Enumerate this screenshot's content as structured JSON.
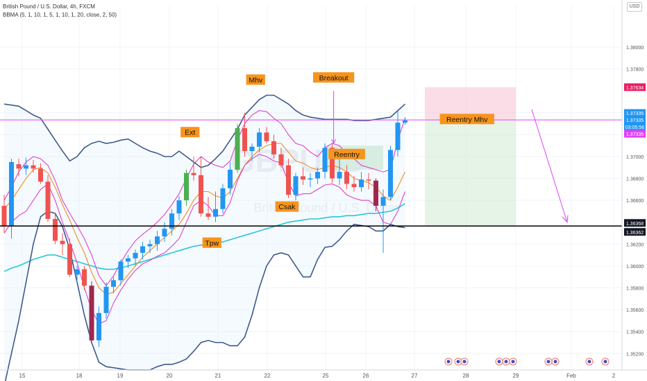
{
  "header": {
    "symbol_line": "British Pound / U.S. Dollar, 4h, FXCM",
    "indicator_line": "BBMA (5, 1, 10, 1, 5, 1, 10, 1, 20, close, 2, 50)",
    "currency_button": "USD"
  },
  "watermark": {
    "ticker": "GBPUSD",
    "name": "British Pound / U.S. Dollar"
  },
  "colors": {
    "up": "#2196f3",
    "down": "#ef5350",
    "extreme_up": "#4caf50",
    "extreme_down": "#a0284e",
    "bb_outer": "#3c5a8c",
    "bb_inner": "#e040c8",
    "wma": "#f08c1e",
    "ema50": "#26c6da",
    "label_bg": "#f7941d",
    "support_line": "#000000",
    "reentry_line": "#e040fb",
    "stop_zone": "#f8bbd0",
    "target_zone": "#c8e6c9"
  },
  "chart_data": {
    "type": "candlestick",
    "title": "British Pound / U.S. Dollar, 4h, FXCM",
    "y_axis": {
      "ticks": [
        "1.38000",
        "1.37800",
        "1.37400",
        "1.37200",
        "1.37000",
        "1.36800",
        "1.36600",
        "1.36200",
        "1.36000",
        "1.35800",
        "1.35600",
        "1.35400",
        "1.35200"
      ],
      "range": [
        1.3505,
        1.3838
      ]
    },
    "x_axis": {
      "ticks": [
        "15",
        "18",
        "19",
        "20",
        "21",
        "22",
        "25",
        "26",
        "27",
        "28",
        "29",
        "Feb",
        "2"
      ]
    },
    "price_labels": [
      {
        "value": "1.37634",
        "color": "#e91e63"
      },
      {
        "value": "1.37335",
        "color": "#2196f3"
      },
      {
        "value": "1.37335",
        "color": "#2196f3"
      },
      {
        "value": "03:05:56",
        "color": "#2196f3"
      },
      {
        "value": "1.37335",
        "color": "#e040fb"
      },
      {
        "value": "1.36368",
        "color": "#131722"
      },
      {
        "value": "1.36362",
        "color": "#131722"
      }
    ],
    "candles": [
      {
        "o": 1.3655,
        "h": 1.3665,
        "l": 1.363,
        "c": 1.3637
      },
      {
        "o": 1.3637,
        "h": 1.3698,
        "l": 1.3625,
        "c": 1.3695
      },
      {
        "o": 1.3693,
        "h": 1.3698,
        "l": 1.3682,
        "c": 1.3689
      },
      {
        "o": 1.3689,
        "h": 1.3699,
        "l": 1.3683,
        "c": 1.3692
      },
      {
        "o": 1.3692,
        "h": 1.3697,
        "l": 1.3685,
        "c": 1.3689
      },
      {
        "o": 1.3689,
        "h": 1.3694,
        "l": 1.3675,
        "c": 1.3677
      },
      {
        "o": 1.3677,
        "h": 1.3683,
        "l": 1.364,
        "c": 1.3643
      },
      {
        "o": 1.3643,
        "h": 1.3648,
        "l": 1.362,
        "c": 1.3623
      },
      {
        "o": 1.3623,
        "h": 1.363,
        "l": 1.361,
        "c": 1.362
      },
      {
        "o": 1.362,
        "h": 1.3625,
        "l": 1.359,
        "c": 1.3592
      },
      {
        "o": 1.3592,
        "h": 1.36,
        "l": 1.3585,
        "c": 1.3597
      },
      {
        "o": 1.3597,
        "h": 1.36,
        "l": 1.3578,
        "c": 1.3582
      },
      {
        "o": 1.3582,
        "h": 1.3586,
        "l": 1.353,
        "c": 1.3532
      },
      {
        "o": 1.3532,
        "h": 1.3563,
        "l": 1.3526,
        "c": 1.3557
      },
      {
        "o": 1.3557,
        "h": 1.3585,
        "l": 1.3552,
        "c": 1.3581
      },
      {
        "o": 1.3581,
        "h": 1.359,
        "l": 1.3575,
        "c": 1.3587
      },
      {
        "o": 1.3587,
        "h": 1.3606,
        "l": 1.3582,
        "c": 1.3604
      },
      {
        "o": 1.3604,
        "h": 1.361,
        "l": 1.3598,
        "c": 1.3607
      },
      {
        "o": 1.3607,
        "h": 1.3615,
        "l": 1.36,
        "c": 1.3612
      },
      {
        "o": 1.3612,
        "h": 1.3622,
        "l": 1.3606,
        "c": 1.3618
      },
      {
        "o": 1.3618,
        "h": 1.3624,
        "l": 1.3612,
        "c": 1.362
      },
      {
        "o": 1.362,
        "h": 1.3632,
        "l": 1.3614,
        "c": 1.3627
      },
      {
        "o": 1.3627,
        "h": 1.364,
        "l": 1.3622,
        "c": 1.3634
      },
      {
        "o": 1.3634,
        "h": 1.3652,
        "l": 1.3628,
        "c": 1.3648
      },
      {
        "o": 1.3648,
        "h": 1.3664,
        "l": 1.3642,
        "c": 1.366
      },
      {
        "o": 1.366,
        "h": 1.3688,
        "l": 1.3655,
        "c": 1.3685
      },
      {
        "o": 1.3685,
        "h": 1.37,
        "l": 1.3678,
        "c": 1.3683
      },
      {
        "o": 1.3683,
        "h": 1.37,
        "l": 1.3645,
        "c": 1.3648
      },
      {
        "o": 1.3648,
        "h": 1.3663,
        "l": 1.3642,
        "c": 1.3645
      },
      {
        "o": 1.3645,
        "h": 1.3668,
        "l": 1.364,
        "c": 1.3652
      },
      {
        "o": 1.3652,
        "h": 1.3675,
        "l": 1.3648,
        "c": 1.3671
      },
      {
        "o": 1.3671,
        "h": 1.3695,
        "l": 1.3665,
        "c": 1.3688
      },
      {
        "o": 1.3688,
        "h": 1.373,
        "l": 1.3685,
        "c": 1.3726
      },
      {
        "o": 1.3726,
        "h": 1.374,
        "l": 1.37,
        "c": 1.3705
      },
      {
        "o": 1.3705,
        "h": 1.3712,
        "l": 1.3696,
        "c": 1.3709
      },
      {
        "o": 1.3709,
        "h": 1.3726,
        "l": 1.3704,
        "c": 1.3722
      },
      {
        "o": 1.3722,
        "h": 1.3727,
        "l": 1.3712,
        "c": 1.3714
      },
      {
        "o": 1.3714,
        "h": 1.372,
        "l": 1.3698,
        "c": 1.3702
      },
      {
        "o": 1.3702,
        "h": 1.3708,
        "l": 1.369,
        "c": 1.3692
      },
      {
        "o": 1.3692,
        "h": 1.3698,
        "l": 1.3662,
        "c": 1.3665
      },
      {
        "o": 1.3665,
        "h": 1.3685,
        "l": 1.366,
        "c": 1.3682
      },
      {
        "o": 1.3682,
        "h": 1.369,
        "l": 1.3674,
        "c": 1.3679
      },
      {
        "o": 1.3679,
        "h": 1.3685,
        "l": 1.3672,
        "c": 1.368
      },
      {
        "o": 1.368,
        "h": 1.369,
        "l": 1.3675,
        "c": 1.3686
      },
      {
        "o": 1.3686,
        "h": 1.3712,
        "l": 1.368,
        "c": 1.3708
      },
      {
        "o": 1.3708,
        "h": 1.3712,
        "l": 1.3676,
        "c": 1.368
      },
      {
        "o": 1.368,
        "h": 1.3698,
        "l": 1.3674,
        "c": 1.3686
      },
      {
        "o": 1.3686,
        "h": 1.3692,
        "l": 1.367,
        "c": 1.3675
      },
      {
        "o": 1.3675,
        "h": 1.3682,
        "l": 1.3668,
        "c": 1.3672
      },
      {
        "o": 1.3672,
        "h": 1.3686,
        "l": 1.3668,
        "c": 1.3679
      },
      {
        "o": 1.3679,
        "h": 1.3685,
        "l": 1.367,
        "c": 1.3678
      },
      {
        "o": 1.3678,
        "h": 1.368,
        "l": 1.365,
        "c": 1.3655
      },
      {
        "o": 1.3655,
        "h": 1.367,
        "l": 1.3612,
        "c": 1.3663
      },
      {
        "o": 1.3663,
        "h": 1.371,
        "l": 1.366,
        "c": 1.3706
      },
      {
        "o": 1.3706,
        "h": 1.3742,
        "l": 1.37,
        "c": 1.3731
      },
      {
        "o": 1.3731,
        "h": 1.3736,
        "l": 1.3729,
        "c": 1.3733
      }
    ],
    "extreme_up_index": [
      25,
      32
    ],
    "extreme_down_index": [
      12,
      51
    ],
    "bands": {
      "bb_upper": [
        1.3748,
        1.3747,
        1.3746,
        1.3742,
        1.3738,
        1.3735,
        1.3725,
        1.3715,
        1.3705,
        1.3696,
        1.37,
        1.3708,
        1.3712,
        1.3714,
        1.3712,
        1.3713,
        1.3715,
        1.3716,
        1.3712,
        1.3708,
        1.3705,
        1.3703,
        1.37,
        1.37,
        1.3705,
        1.37,
        1.3695,
        1.369,
        1.3692,
        1.3698,
        1.3705,
        1.3715,
        1.3725,
        1.3738,
        1.3745,
        1.3752,
        1.3756,
        1.3756,
        1.3752,
        1.3748,
        1.3742,
        1.3738,
        1.3736,
        1.3735,
        1.3734,
        1.3734,
        1.3734,
        1.3734,
        1.3733,
        1.3733,
        1.3733,
        1.3734,
        1.3735,
        1.3736,
        1.3742,
        1.3748
      ],
      "bb_lower": [
        1.349,
        1.352,
        1.355,
        1.3585,
        1.362,
        1.3645,
        1.365,
        1.3648,
        1.3636,
        1.3615,
        1.3585,
        1.3555,
        1.353,
        1.3512,
        1.3508,
        1.3507,
        1.3506,
        1.3505,
        1.3505,
        1.3505,
        1.3505,
        1.3508,
        1.351,
        1.351,
        1.3512,
        1.3515,
        1.3522,
        1.353,
        1.3532,
        1.353,
        1.353,
        1.3527,
        1.3527,
        1.3535,
        1.3555,
        1.358,
        1.36,
        1.361,
        1.3612,
        1.361,
        1.36,
        1.359,
        1.359,
        1.3606,
        1.3617,
        1.3618,
        1.3624,
        1.3632,
        1.3638,
        1.3637,
        1.3636,
        1.3632,
        1.3632,
        1.3638,
        1.3636,
        1.3635
      ],
      "inner_upper": [
        1.366,
        1.3672,
        1.3686,
        1.3695,
        1.37,
        1.3698,
        1.3692,
        1.3678,
        1.366,
        1.3648,
        1.3637,
        1.3625,
        1.361,
        1.3591,
        1.3582,
        1.3591,
        1.3603,
        1.3614,
        1.3623,
        1.3629,
        1.3634,
        1.364,
        1.3647,
        1.3656,
        1.3666,
        1.368,
        1.3693,
        1.37,
        1.3695,
        1.3692,
        1.369,
        1.3696,
        1.3715,
        1.373,
        1.3738,
        1.3742,
        1.3741,
        1.3735,
        1.373,
        1.372,
        1.3712,
        1.371,
        1.3704,
        1.37,
        1.3708,
        1.3712,
        1.371,
        1.3702,
        1.3698,
        1.3692,
        1.369,
        1.3688,
        1.3686,
        1.3688,
        1.3715,
        1.3735
      ],
      "inner_lower": [
        1.363,
        1.364,
        1.3646,
        1.365,
        1.366,
        1.367,
        1.3675,
        1.366,
        1.364,
        1.3622,
        1.3603,
        1.358,
        1.356,
        1.3547,
        1.355,
        1.3566,
        1.3578,
        1.3588,
        1.3596,
        1.3602,
        1.3605,
        1.3609,
        1.3612,
        1.3618,
        1.3625,
        1.364,
        1.3655,
        1.366,
        1.3655,
        1.3646,
        1.3646,
        1.3658,
        1.3678,
        1.3692,
        1.3698,
        1.3702,
        1.37,
        1.3696,
        1.3694,
        1.3676,
        1.3664,
        1.3666,
        1.3666,
        1.367,
        1.3674,
        1.3675,
        1.3672,
        1.3665,
        1.3662,
        1.366,
        1.366,
        1.3655,
        1.364,
        1.3638,
        1.365,
        1.3668
      ],
      "wma": [
        1.3652,
        1.366,
        1.367,
        1.368,
        1.3688,
        1.369,
        1.3685,
        1.3672,
        1.3656,
        1.3642,
        1.3626,
        1.3612,
        1.3594,
        1.358,
        1.3574,
        1.3576,
        1.3584,
        1.3592,
        1.36,
        1.3608,
        1.3614,
        1.362,
        1.3626,
        1.3632,
        1.3638,
        1.3648,
        1.366,
        1.3668,
        1.3668,
        1.3664,
        1.3662,
        1.3668,
        1.368,
        1.3692,
        1.37,
        1.3706,
        1.371,
        1.3712,
        1.3712,
        1.3704,
        1.3696,
        1.3694,
        1.369,
        1.3688,
        1.369,
        1.3692,
        1.369,
        1.3686,
        1.368,
        1.3678,
        1.3676,
        1.3672,
        1.3664,
        1.366,
        1.3672,
        1.3686
      ],
      "ema50": [
        1.3595,
        1.3598,
        1.36,
        1.3603,
        1.3606,
        1.3608,
        1.361,
        1.361,
        1.3608,
        1.3606,
        1.3604,
        1.3602,
        1.36,
        1.3598,
        1.3597,
        1.3597,
        1.3598,
        1.36,
        1.3602,
        1.3604,
        1.3606,
        1.3608,
        1.361,
        1.3612,
        1.3614,
        1.3616,
        1.3618,
        1.3619,
        1.362,
        1.3621,
        1.3622,
        1.3624,
        1.3626,
        1.3628,
        1.363,
        1.3632,
        1.3634,
        1.3636,
        1.3638,
        1.364,
        1.3641,
        1.3642,
        1.3643,
        1.3643,
        1.3644,
        1.3645,
        1.3645,
        1.3646,
        1.3646,
        1.3647,
        1.3648,
        1.3648,
        1.3649,
        1.365,
        1.3653,
        1.3657
      ]
    },
    "annotations": [
      {
        "text": "Mhv",
        "index": 34.5,
        "price": 1.377
      },
      {
        "text": "Breakout",
        "index": 45.2,
        "price": 1.3772
      },
      {
        "text": "Ext",
        "index": 25.5,
        "price": 1.3722
      },
      {
        "text": "Reentry",
        "index": 47.0,
        "price": 1.3702
      },
      {
        "text": "Csak",
        "index": 38.8,
        "price": 1.3654
      },
      {
        "text": "Tpw",
        "index": 28.5,
        "price": 1.3621
      },
      {
        "text": "Reentry Mhv",
        "index": 63.5,
        "price": 1.3734
      }
    ],
    "levels": {
      "support": 1.36365,
      "reentry": 1.37335,
      "stop": 1.37634,
      "target": 1.36368
    }
  }
}
